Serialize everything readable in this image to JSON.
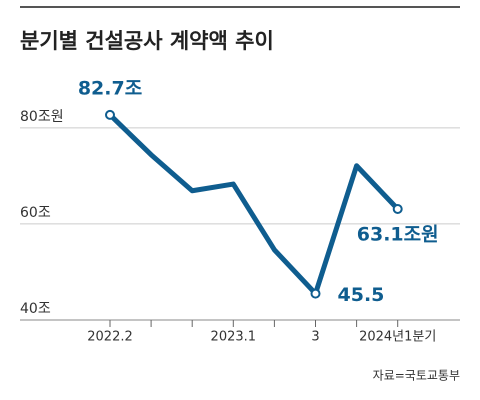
{
  "chart_data": {
    "type": "line",
    "title": "분기별 건설공사 계약액 추이",
    "categories": [
      "2022.2",
      null,
      null,
      "2023.1",
      null,
      "3",
      null,
      "2024년1분기"
    ],
    "series": [
      {
        "name": null,
        "color": "#0f5d8f",
        "values": [
          82.7,
          74.4,
          66.9,
          68.3,
          54.6,
          45.5,
          72.1,
          63.1
        ],
        "value_labels": [
          "82.7조",
          null,
          null,
          null,
          null,
          "45.5",
          null,
          "63.1조원"
        ]
      }
    ],
    "ylim": [
      40,
      86
    ],
    "yticks": [
      {
        "value": 40,
        "label": "40조"
      },
      {
        "value": 60,
        "label": "60조"
      },
      {
        "value": 80,
        "label": "80조원"
      }
    ],
    "grid": true,
    "source": "자료=국토교통부"
  }
}
